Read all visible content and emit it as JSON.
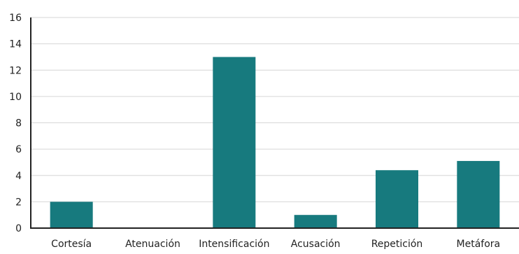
{
  "chart_data": {
    "type": "bar",
    "categories": [
      "Cortesía",
      "Atenuación",
      "Intensificación",
      "Acusación",
      "Repetición",
      "Metáfora"
    ],
    "values": [
      2.0,
      0,
      13.0,
      1.0,
      4.4,
      5.1
    ],
    "ylim": [
      0,
      16
    ],
    "yticks": [
      "0",
      "2",
      "4",
      "6",
      "8",
      "10",
      "12",
      "14",
      "16"
    ],
    "grid": true,
    "legend": "none",
    "colors": {
      "bar": "#177a7e",
      "grid": "#d6d6d6",
      "axis": "#222222"
    }
  }
}
